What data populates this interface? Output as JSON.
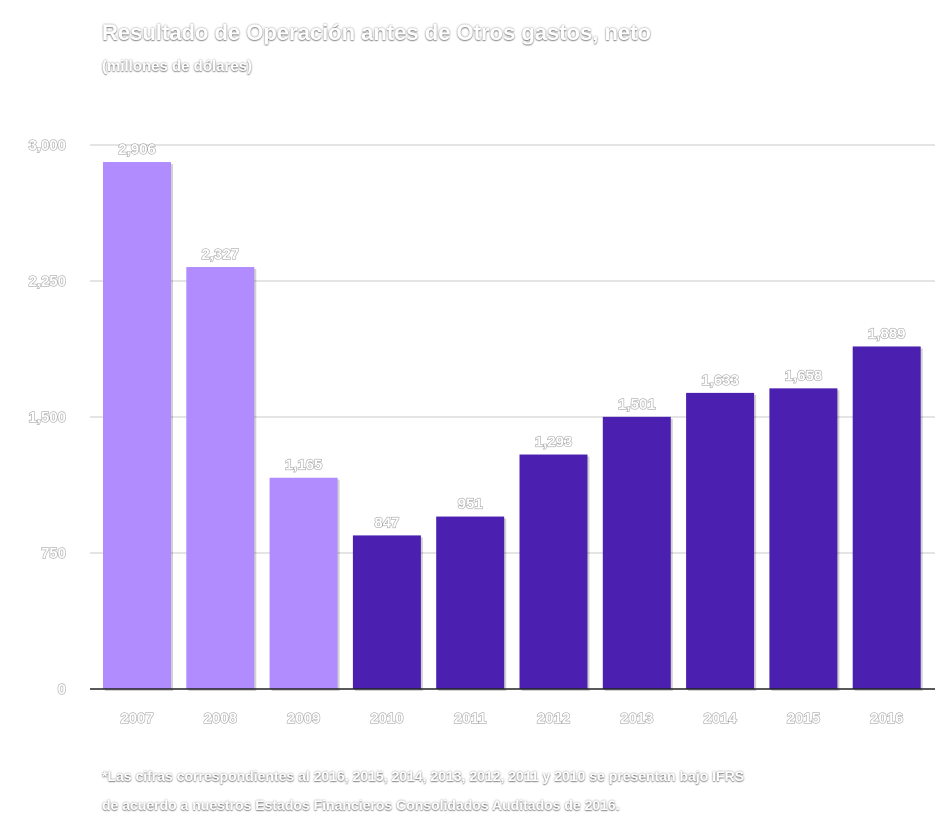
{
  "chart_data": {
    "type": "bar",
    "title": "Resultado de Operación antes de Otros gastos, neto",
    "subtitle": "(millones de dólares)",
    "categories": [
      "2007",
      "2008",
      "2009",
      "2010",
      "2011",
      "2012",
      "2013",
      "2014",
      "2015",
      "2016"
    ],
    "values": [
      2906,
      2327,
      1165,
      847,
      951,
      1293,
      1501,
      1633,
      1658,
      1889
    ],
    "value_labels": [
      "2,906",
      "2,327",
      "1,165",
      "847",
      "951",
      "1,293",
      "1,501",
      "1,633",
      "1,658",
      "1,889"
    ],
    "ylim": [
      0,
      3000
    ],
    "yticks": [
      0,
      750,
      1500,
      2250,
      3000
    ],
    "ytick_labels": [
      "0",
      "750",
      "1,500",
      "2,250",
      "3,000"
    ],
    "grid": true,
    "colors": {
      "light": "#b08cff",
      "dark": "#4b1fb0",
      "grid": "#c8c8c8",
      "axis": "#222222"
    },
    "bar_color_keys": [
      "light",
      "light",
      "light",
      "dark",
      "dark",
      "dark",
      "dark",
      "dark",
      "dark",
      "dark"
    ]
  },
  "footnote": {
    "line1": "*Las cifras correspondientes al 2016, 2015, 2014, 2013, 2012, 2011 y 2010 se presentan bajo IFRS",
    "line2": "de acuerdo a nuestros Estados Financieros Consolidados Auditados de 2016."
  }
}
